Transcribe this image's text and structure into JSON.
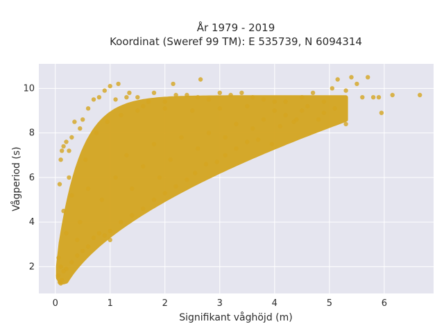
{
  "chart_data": {
    "type": "scatter",
    "title_lines": [
      "År 1979 - 2019",
      "Koordinat (Sweref 99 TM): E 535739, N 6094314"
    ],
    "xlabel": "Signifikant våghöjd (m)",
    "ylabel": "Vågperiod (s)",
    "xlim": [
      -0.3,
      6.9
    ],
    "ylim": [
      0.8,
      11.1
    ],
    "x_ticks": [
      0,
      1,
      2,
      3,
      4,
      5,
      6
    ],
    "x_tick_labels": [
      "0",
      "1",
      "2",
      "3",
      "4",
      "5",
      "6"
    ],
    "y_ticks": [
      2,
      4,
      6,
      8,
      10
    ],
    "y_tick_labels": [
      "2",
      "4",
      "6",
      "8",
      "10"
    ],
    "grid": true,
    "legend": "none",
    "colors": {
      "plot_bg": "#e5e5ef",
      "grid": "#ffffff",
      "marker": "#d4a520"
    },
    "series": [
      {
        "points": [
          [
            0.05,
            1.6
          ],
          [
            0.08,
            1.3
          ],
          [
            0.1,
            1.25
          ],
          [
            0.12,
            1.4
          ],
          [
            0.1,
            2.0
          ],
          [
            0.06,
            2.4
          ],
          [
            0.08,
            5.7
          ],
          [
            0.1,
            6.8
          ],
          [
            0.12,
            7.2
          ],
          [
            0.15,
            7.4
          ],
          [
            0.2,
            7.6
          ],
          [
            0.25,
            7.2
          ],
          [
            0.3,
            7.8
          ],
          [
            0.35,
            8.5
          ],
          [
            0.45,
            8.2
          ],
          [
            0.5,
            8.6
          ],
          [
            0.6,
            9.1
          ],
          [
            0.7,
            9.5
          ],
          [
            0.8,
            9.6
          ],
          [
            0.9,
            9.9
          ],
          [
            1.0,
            10.1
          ],
          [
            1.1,
            9.5
          ],
          [
            1.15,
            10.2
          ],
          [
            1.3,
            9.6
          ],
          [
            1.35,
            9.8
          ],
          [
            1.5,
            9.6
          ],
          [
            1.6,
            9.2
          ],
          [
            1.7,
            9.4
          ],
          [
            1.8,
            9.8
          ],
          [
            2.0,
            9.4
          ],
          [
            2.15,
            10.2
          ],
          [
            2.2,
            9.7
          ],
          [
            2.4,
            9.7
          ],
          [
            2.6,
            9.6
          ],
          [
            2.65,
            10.4
          ],
          [
            2.8,
            9.5
          ],
          [
            3.0,
            9.8
          ],
          [
            3.2,
            9.7
          ],
          [
            3.4,
            9.8
          ],
          [
            3.6,
            9.6
          ],
          [
            3.8,
            9.5
          ],
          [
            4.0,
            9.4
          ],
          [
            4.2,
            9.4
          ],
          [
            4.5,
            9.6
          ],
          [
            4.7,
            9.8
          ],
          [
            4.9,
            9.4
          ],
          [
            5.05,
            10.0
          ],
          [
            5.15,
            10.4
          ],
          [
            5.3,
            9.9
          ],
          [
            5.4,
            10.5
          ],
          [
            5.5,
            10.2
          ],
          [
            5.6,
            9.6
          ],
          [
            5.7,
            10.5
          ],
          [
            5.8,
            9.6
          ],
          [
            5.9,
            9.6
          ],
          [
            5.95,
            8.9
          ],
          [
            6.15,
            9.7
          ],
          [
            6.65,
            9.7
          ],
          [
            5.3,
            8.4
          ],
          [
            5.1,
            9.1
          ],
          [
            4.9,
            8.9
          ],
          [
            4.8,
            8.6
          ],
          [
            4.6,
            9.2
          ],
          [
            4.4,
            8.6
          ],
          [
            4.35,
            8.5
          ],
          [
            4.1,
            8.3
          ],
          [
            3.95,
            7.5
          ],
          [
            3.7,
            7.7
          ],
          [
            3.5,
            7.6
          ],
          [
            3.3,
            7.3
          ],
          [
            3.1,
            7.0
          ],
          [
            2.95,
            6.7
          ],
          [
            2.75,
            6.6
          ],
          [
            2.55,
            6.2
          ],
          [
            2.4,
            5.9
          ],
          [
            2.2,
            5.6
          ],
          [
            2.0,
            5.3
          ],
          [
            1.8,
            5.0
          ],
          [
            1.6,
            4.6
          ],
          [
            1.4,
            4.3
          ],
          [
            1.2,
            4.0
          ],
          [
            1.0,
            3.6
          ],
          [
            0.9,
            3.4
          ],
          [
            0.8,
            3.5
          ],
          [
            0.7,
            3.3
          ],
          [
            0.6,
            2.9
          ],
          [
            0.5,
            2.7
          ],
          [
            0.4,
            2.5
          ],
          [
            0.3,
            2.2
          ],
          [
            0.2,
            1.9
          ],
          [
            0.15,
            1.8
          ],
          [
            1.0,
            3.2
          ],
          [
            0.45,
            4.0
          ],
          [
            0.3,
            5.2
          ],
          [
            0.25,
            6.0
          ],
          [
            0.55,
            6.8
          ],
          [
            0.75,
            8.0
          ],
          [
            0.95,
            8.5
          ],
          [
            1.2,
            8.8
          ],
          [
            1.5,
            9.0
          ],
          [
            2.0,
            9.1
          ],
          [
            2.5,
            9.0
          ],
          [
            3.0,
            9.1
          ],
          [
            3.5,
            9.2
          ],
          [
            4.0,
            9.0
          ],
          [
            4.5,
            9.0
          ],
          [
            1.3,
            7.0
          ],
          [
            1.8,
            7.5
          ],
          [
            2.3,
            7.8
          ],
          [
            2.8,
            8.0
          ],
          [
            3.3,
            8.4
          ],
          [
            3.8,
            8.6
          ],
          [
            1.1,
            6.0
          ],
          [
            1.6,
            6.5
          ],
          [
            2.1,
            6.8
          ],
          [
            2.6,
            7.3
          ],
          [
            3.1,
            7.8
          ],
          [
            3.6,
            8.2
          ],
          [
            4.2,
            8.8
          ],
          [
            0.85,
            5.0
          ],
          [
            1.4,
            5.5
          ],
          [
            1.9,
            6.0
          ],
          [
            0.6,
            5.5
          ],
          [
            0.4,
            3.2
          ],
          [
            0.2,
            3.5
          ],
          [
            0.15,
            4.5
          ]
        ]
      }
    ]
  }
}
